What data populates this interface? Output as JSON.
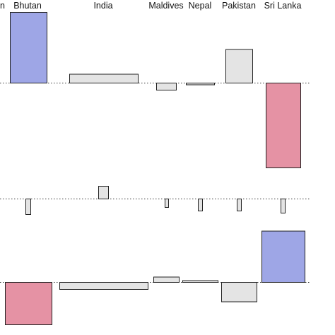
{
  "chart_data": [
    {
      "type": "bar",
      "panel": "top",
      "categories": [
        "Bhutan",
        "India",
        "Maldives",
        "Nepal",
        "Pakistan",
        "Sri Lanka"
      ],
      "values": [
        2.0,
        0.25,
        -0.2,
        -0.05,
        0.95,
        -2.4
      ],
      "baseline": 0,
      "ylim": [
        -2.6,
        2.3
      ],
      "grid": false,
      "colors": {
        "positive_highlight": "#9ea6e6",
        "negative_highlight": "#e592a4",
        "neutral": "#e4e4e4"
      },
      "highlight": {
        "Bhutan": "positive",
        "Sri Lanka": "negative"
      }
    },
    {
      "type": "bar",
      "panel": "middle",
      "categories": [
        "Bhutan",
        "India",
        "Maldives",
        "Nepal",
        "Pakistan",
        "Sri Lanka"
      ],
      "values": [
        -1.1,
        0.9,
        -0.6,
        -0.85,
        -0.85,
        -1.0
      ],
      "baseline": 0,
      "ylim": [
        -1.5,
        1.2
      ],
      "grid": false,
      "colors": {
        "neutral": "#e4e4e4"
      }
    },
    {
      "type": "bar",
      "panel": "bottom",
      "categories": [
        "Bhutan",
        "India",
        "Maldives",
        "Nepal",
        "Pakistan",
        "Sri Lanka"
      ],
      "values": [
        -2.4,
        -0.4,
        0.3,
        0.1,
        -1.1,
        2.9
      ],
      "baseline": 0,
      "ylim": [
        -2.6,
        3.1
      ],
      "grid": false,
      "colors": {
        "positive_highlight": "#9ea6e6",
        "negative_highlight": "#e592a4",
        "neutral": "#e4e4e4"
      },
      "highlight": {
        "Bhutan": "negative",
        "Sri Lanka": "positive"
      }
    }
  ],
  "header": {
    "partial_label": "n",
    "labels": [
      "Bhutan",
      "India",
      "Maldives",
      "Nepal",
      "Pakistan",
      "Sri Lanka"
    ]
  }
}
